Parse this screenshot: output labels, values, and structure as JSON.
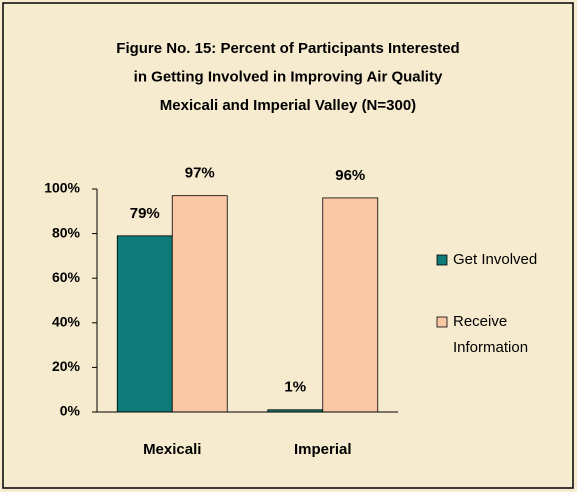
{
  "chart_data": {
    "type": "bar",
    "title": [
      "Figure No. 15:  Percent of Participants Interested",
      "in Getting Involved in Improving Air Quality",
      "Mexicali and Imperial Valley  (N=300)"
    ],
    "categories": [
      "Mexicali",
      "Imperial"
    ],
    "series": [
      {
        "name": "Get Involved",
        "color": "#0f7b78",
        "values": [
          79,
          1
        ],
        "value_labels": [
          "79%",
          "1%"
        ]
      },
      {
        "name": "Receive Information",
        "color": "#fbc8a6",
        "values": [
          97,
          96
        ],
        "value_labels": [
          "97%",
          "96%"
        ]
      }
    ],
    "ylim": [
      0,
      100
    ],
    "yticks": [
      {
        "value": 0,
        "label": "0%"
      },
      {
        "value": 20,
        "label": "20%"
      },
      {
        "value": 40,
        "label": "40%"
      },
      {
        "value": 60,
        "label": "60%"
      },
      {
        "value": 80,
        "label": "80%"
      },
      {
        "value": 100,
        "label": "100%"
      }
    ],
    "legend": "right"
  }
}
